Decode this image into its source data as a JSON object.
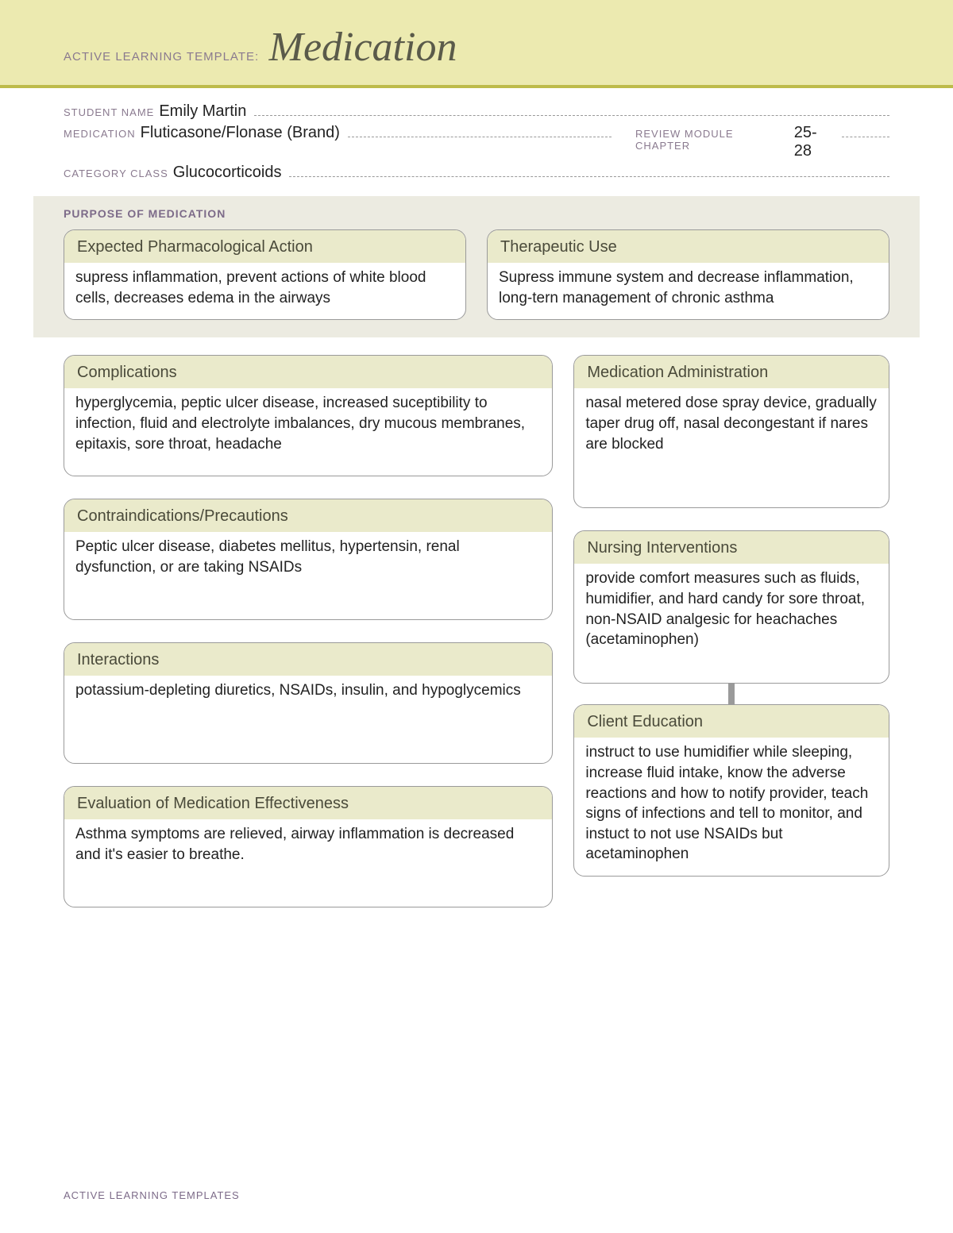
{
  "header": {
    "prefix": "ACTIVE LEARNING TEMPLATE:",
    "title": "Medication"
  },
  "meta": {
    "student_name_label": "STUDENT NAME",
    "student_name": "Emily Martin",
    "medication_label": "MEDICATION",
    "medication": "Fluticasone/Flonase (Brand)",
    "review_label": "REVIEW MODULE CHAPTER",
    "review_chapter": "25-28",
    "category_label": "CATEGORY CLASS",
    "category": "Glucocorticoids"
  },
  "purpose_section_title": "PURPOSE OF MEDICATION",
  "boxes": {
    "pharm_action": {
      "title": "Expected Pharmacological Action",
      "body": "supress inflammation, prevent actions of white blood cells, decreases edema in the airways"
    },
    "therapeutic_use": {
      "title": "Therapeutic Use",
      "body": "Supress immune system and decrease inflammation, long-tern management of chronic asthma"
    },
    "complications": {
      "title": "Complications",
      "body": "hyperglycemia, peptic ulcer disease, increased suceptibility to infection, fluid and electrolyte imbalances, dry mucous membranes, epitaxis, sore throat, headache"
    },
    "administration": {
      "title": "Medication Administration",
      "body": "nasal metered dose spray device, gradually taper drug off, nasal decongestant if nares are blocked"
    },
    "contraindications": {
      "title": "Contraindications/Precautions",
      "body": "Peptic ulcer disease, diabetes mellitus, hypertensin, renal dysfunction, or are taking NSAIDs"
    },
    "nursing": {
      "title": "Nursing Interventions",
      "body": "provide comfort measures such as fluids, humidifier, and hard candy for sore throat, non-NSAID analgesic for heachaches (acetaminophen)"
    },
    "interactions": {
      "title": "Interactions",
      "body": "potassium-depleting diuretics, NSAIDs, insulin, and hypoglycemics"
    },
    "client_education": {
      "title": "Client Education",
      "body": "instruct to use humidifier while sleeping, increase fluid intake, know the adverse reactions and how to notify provider, teach signs of infections and tell to monitor, and instuct to not use NSAIDs but acetaminophen"
    },
    "evaluation": {
      "title": "Evaluation of Medication Effectiveness",
      "body": "Asthma symptoms are relieved, airway inflammation is decreased and it's easier to breathe."
    }
  },
  "footer": "ACTIVE LEARNING TEMPLATES"
}
